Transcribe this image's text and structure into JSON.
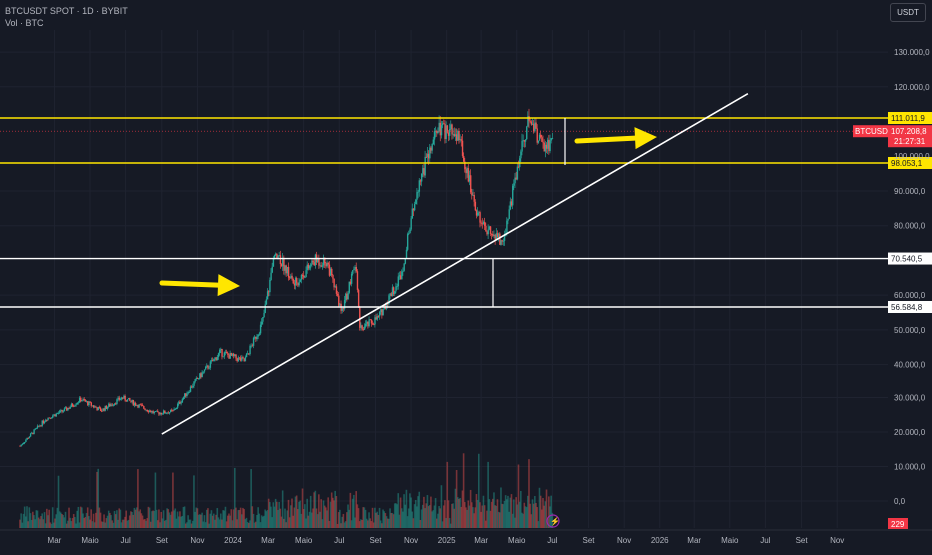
{
  "header": {
    "symbol_line": "BTCUSDT SPOT · 1D · BYBIT",
    "volume_line": "Vol · BTC",
    "currency": "USDT"
  },
  "colors": {
    "background": "#161a25",
    "up": "#26a69a",
    "down": "#ef5350",
    "yellow": "#ffe600",
    "white": "#ffffff",
    "price_badge": "#f23645",
    "axis_text": "#b2b5be"
  },
  "chart_data": {
    "type": "candlestick",
    "title": "BTCUSDT SPOT · 1D · BYBIT",
    "ylim": [
      0,
      140000
    ],
    "y_ticks": [
      "130.000,0",
      "120.000,0",
      "90.000,0",
      "80.000,0",
      "60.000,0",
      "50.000,0",
      "40.000,0",
      "30.000,0",
      "20.000,0",
      "10.000,0",
      "0,0"
    ],
    "x_ticks": [
      "Mar",
      "Maio",
      "Jul",
      "Set",
      "Nov",
      "2024",
      "Mar",
      "Maio",
      "Jul",
      "Set",
      "Nov",
      "2025",
      "Mar",
      "Maio",
      "Jul",
      "Set",
      "Nov",
      "2026",
      "Mar",
      "Maio",
      "Jul",
      "Set",
      "Nov"
    ],
    "price_path": [
      [
        "2023-01-01",
        16600
      ],
      [
        "2023-02-15",
        24500
      ],
      [
        "2023-03-20",
        27000
      ],
      [
        "2023-04-15",
        30000
      ],
      [
        "2023-05-20",
        26800
      ],
      [
        "2023-06-25",
        30500
      ],
      [
        "2023-08-20",
        26000
      ],
      [
        "2023-09-20",
        26500
      ],
      [
        "2023-10-25",
        34500
      ],
      [
        "2023-12-10",
        43500
      ],
      [
        "2024-01-20",
        41000
      ],
      [
        "2024-02-20",
        52000
      ],
      [
        "2024-03-14",
        73000
      ],
      [
        "2024-04-15",
        63000
      ],
      [
        "2024-05-20",
        70000
      ],
      [
        "2024-06-10",
        69500
      ],
      [
        "2024-07-05",
        55000
      ],
      [
        "2024-07-29",
        69000
      ],
      [
        "2024-08-05",
        50000
      ],
      [
        "2024-09-06",
        53500
      ],
      [
        "2024-10-15",
        66000
      ],
      [
        "2024-11-13",
        92000
      ],
      [
        "2024-12-17",
        107500
      ],
      [
        "2025-01-20",
        106000
      ],
      [
        "2025-02-28",
        80000
      ],
      [
        "2025-04-07",
        75000
      ],
      [
        "2025-05-10",
        103500
      ],
      [
        "2025-05-22",
        111000
      ],
      [
        "2025-06-20",
        101000
      ],
      [
        "2025-07-01",
        107200
      ]
    ],
    "levels": [
      {
        "label": "111.011,9",
        "value": 111011.9,
        "color": "yellow"
      },
      {
        "label": "98.053,1",
        "value": 98053.1,
        "color": "yellow"
      },
      {
        "label": "70.540,5",
        "value": 70540.5,
        "color": "white"
      },
      {
        "label": "56.584,8",
        "value": 56584.8,
        "color": "white"
      }
    ],
    "current_price": {
      "symbol": "BTCUSDT",
      "value": "107.208,8",
      "countdown": "21:27:31"
    },
    "partial_tick": "100.000,0",
    "volume_badge": "229",
    "annotations": {
      "trendline": {
        "from": [
          "2023-09-01",
          20000
        ],
        "to": [
          "2026-06-01",
          118000
        ]
      },
      "arrows": [
        "2024 breakout arrow",
        "2025 breakout arrow"
      ],
      "measure_lines": [
        "2024 range height",
        "2025 range height"
      ]
    }
  }
}
